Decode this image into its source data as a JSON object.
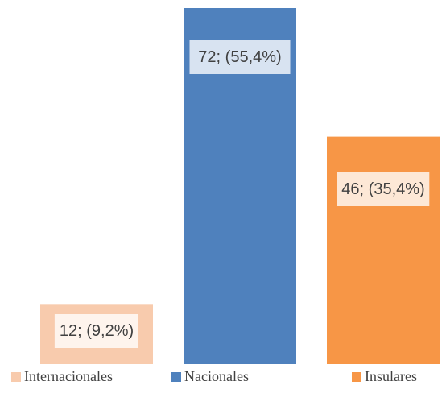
{
  "chart_data": {
    "type": "bar",
    "series": [
      {
        "name": "Internacionales",
        "color": "#F8CBAD",
        "values": [
          12
        ],
        "value_labels": [
          "12; (9,2%)"
        ]
      },
      {
        "name": "Nacionales",
        "color": "#4F81BD",
        "values": [
          72
        ],
        "value_labels": [
          "72; (55,4%)"
        ]
      },
      {
        "name": "Insulares",
        "color": "#F79646",
        "values": [
          46
        ],
        "value_labels": [
          "46; (35,4%)"
        ]
      }
    ],
    "legend": "bottom"
  }
}
